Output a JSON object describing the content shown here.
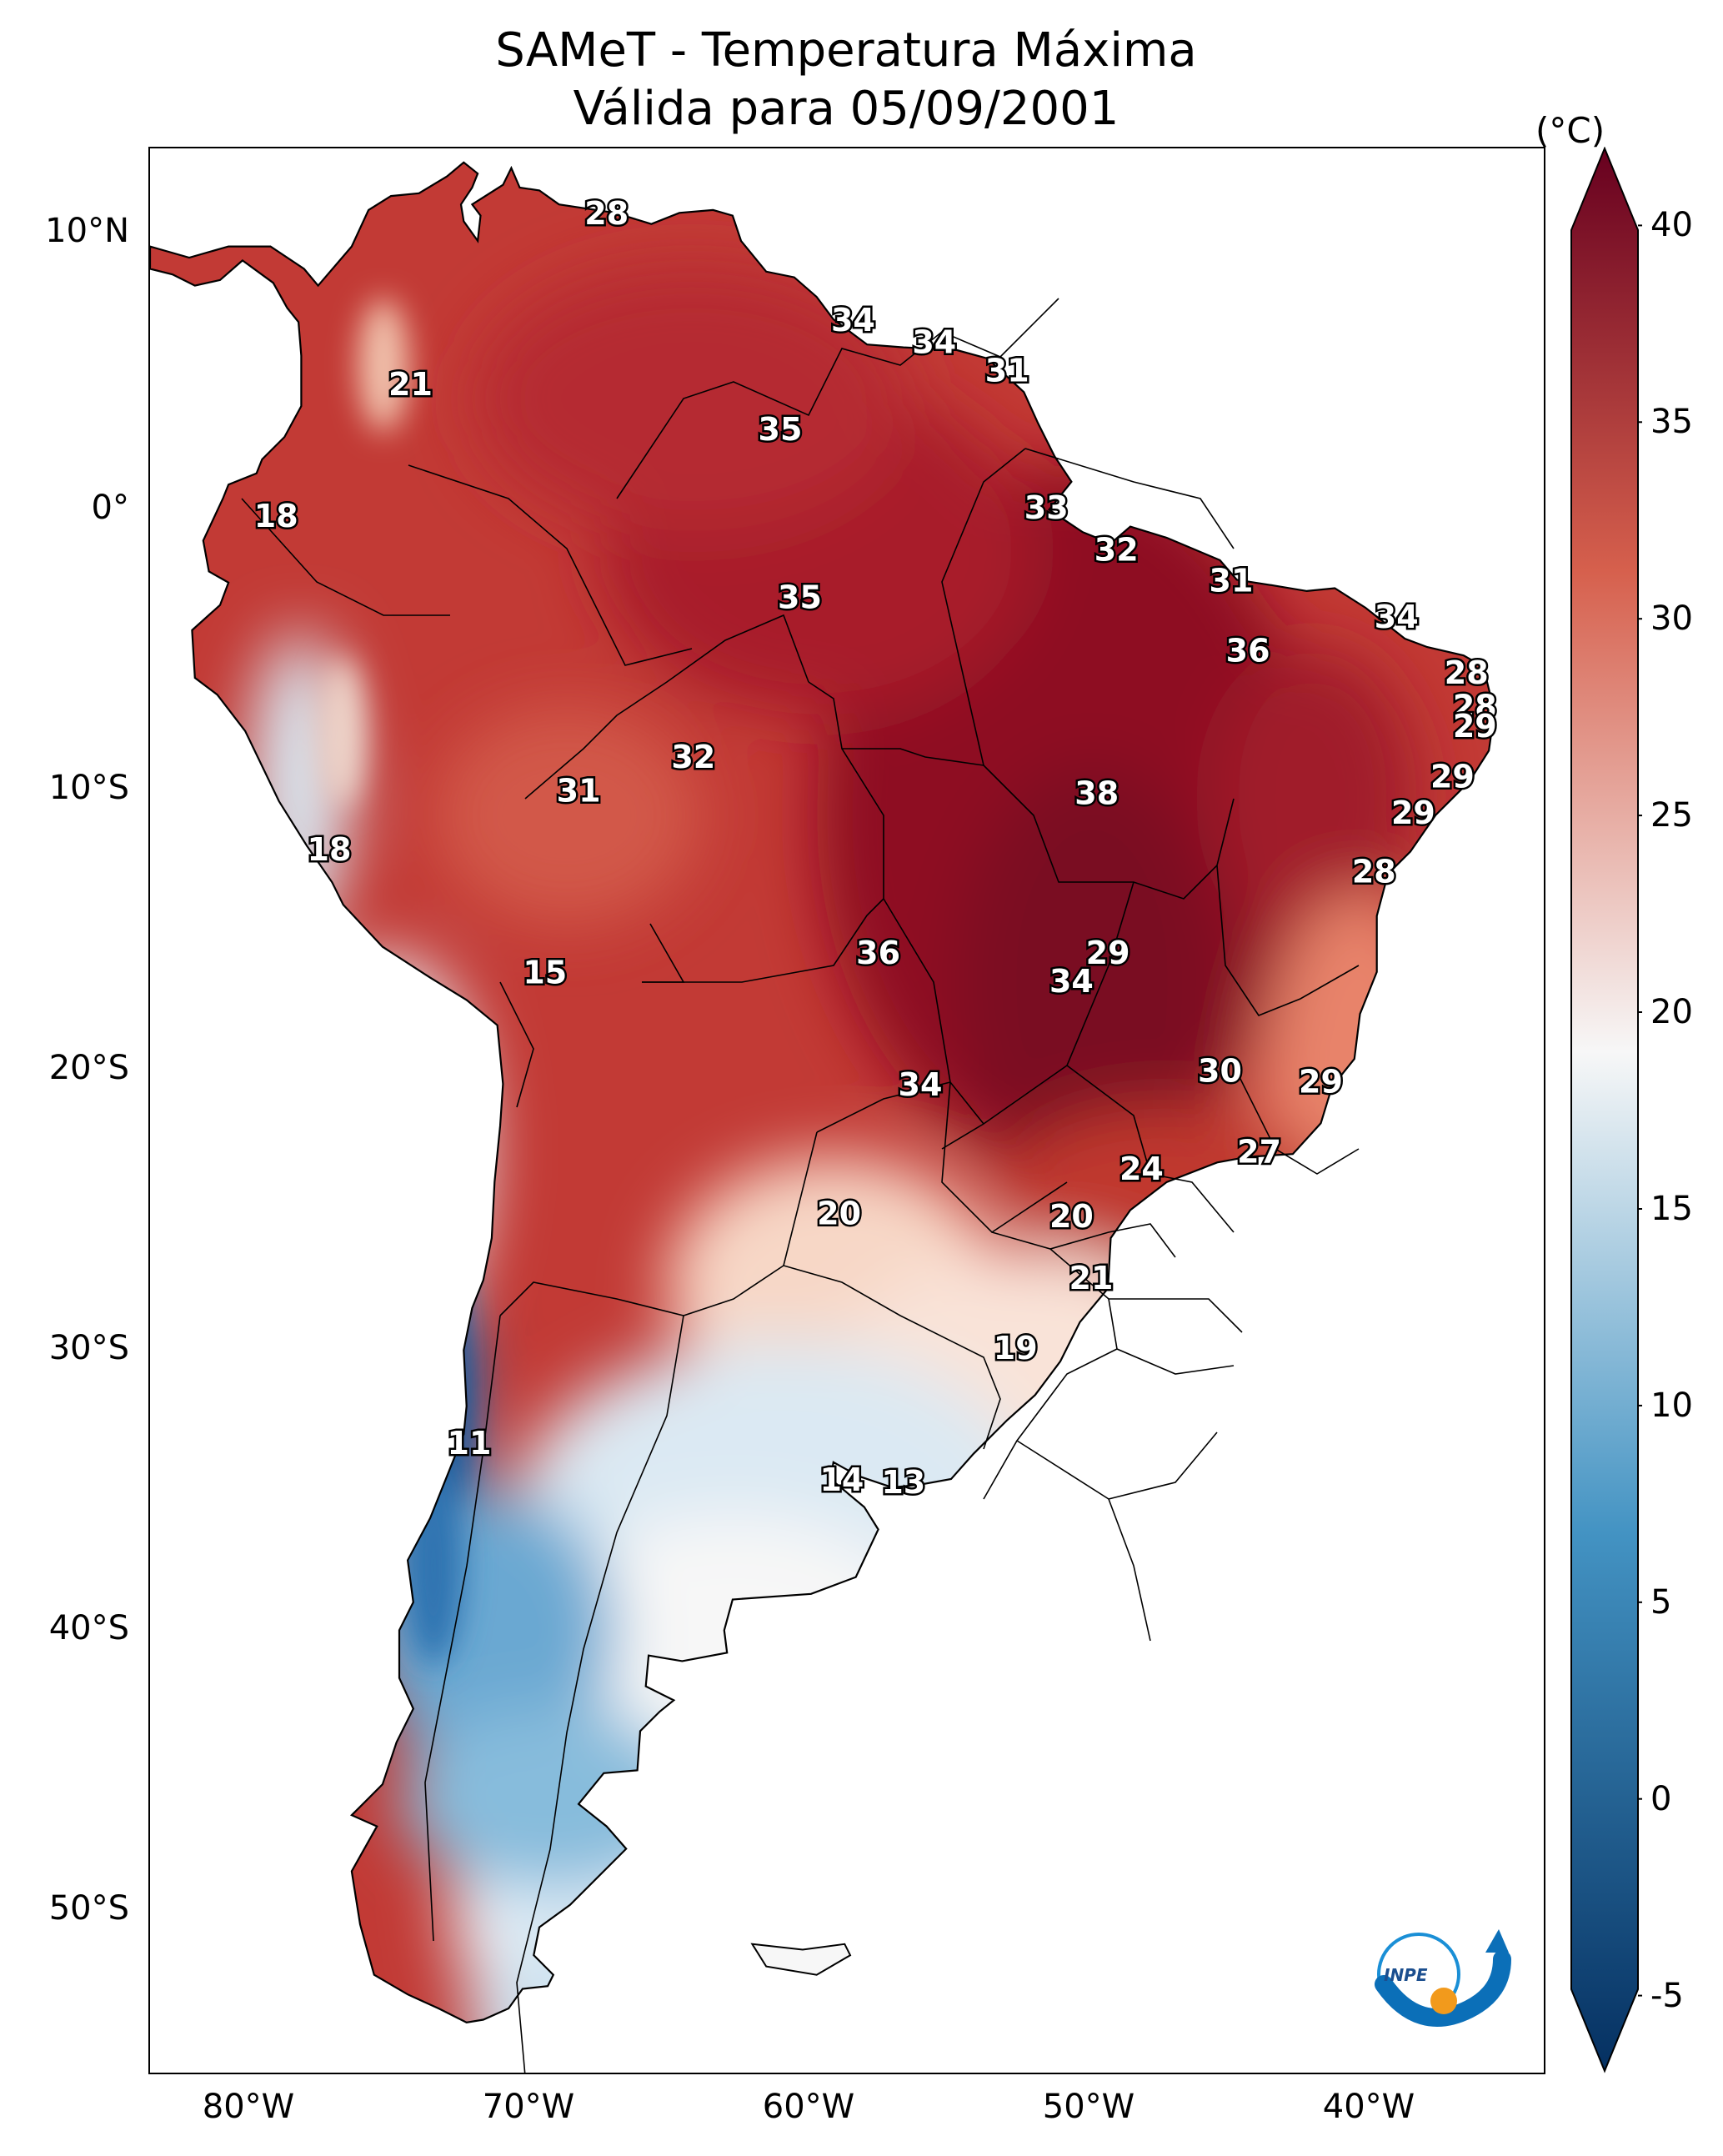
{
  "title": {
    "line1": "SAMeT - Temperatura Máxima",
    "line2": "Válida para 05/09/2001"
  },
  "axes": {
    "lat_ticks": [
      "10°N",
      "0°",
      "10°S",
      "20°S",
      "30°S",
      "40°S",
      "50°S"
    ],
    "lon_ticks": [
      "80°W",
      "70°W",
      "60°W",
      "50°W",
      "40°W"
    ]
  },
  "colorbar": {
    "unit": "(°C)",
    "min": -7,
    "max": 42,
    "ticks": [
      "40",
      "35",
      "30",
      "25",
      "20",
      "15",
      "10",
      "5",
      "0",
      "-5"
    ],
    "colors": {
      "hot": "#67001f",
      "warm": "#d6604d",
      "neutral": "#f7f7f7",
      "cool": "#4393c3",
      "cold": "#053061"
    }
  },
  "map_labels": [
    {
      "text": "28",
      "lon": -66.5,
      "lat": 10.5
    },
    {
      "text": "21",
      "lon": -73.5,
      "lat": 4.4
    },
    {
      "text": "34",
      "lon": -57.7,
      "lat": 6.7
    },
    {
      "text": "34",
      "lon": -54.8,
      "lat": 5.9
    },
    {
      "text": "31",
      "lon": -52.2,
      "lat": 4.9
    },
    {
      "text": "35",
      "lon": -60.3,
      "lat": 2.8
    },
    {
      "text": "33",
      "lon": -50.8,
      "lat": 0.0
    },
    {
      "text": "18",
      "lon": -78.3,
      "lat": -0.3
    },
    {
      "text": "32",
      "lon": -48.3,
      "lat": -1.5
    },
    {
      "text": "31",
      "lon": -44.2,
      "lat": -2.6
    },
    {
      "text": "35",
      "lon": -59.6,
      "lat": -3.2
    },
    {
      "text": "34",
      "lon": -38.3,
      "lat": -3.9
    },
    {
      "text": "36",
      "lon": -43.6,
      "lat": -5.1
    },
    {
      "text": "28",
      "lon": -35.8,
      "lat": -5.9
    },
    {
      "text": "28",
      "lon": -35.5,
      "lat": -7.1
    },
    {
      "text": "29",
      "lon": -35.5,
      "lat": -7.8
    },
    {
      "text": "32",
      "lon": -63.4,
      "lat": -8.9
    },
    {
      "text": "29",
      "lon": -36.3,
      "lat": -9.6
    },
    {
      "text": "31",
      "lon": -67.5,
      "lat": -10.1
    },
    {
      "text": "38",
      "lon": -49.0,
      "lat": -10.2
    },
    {
      "text": "29",
      "lon": -37.7,
      "lat": -10.9
    },
    {
      "text": "18",
      "lon": -76.4,
      "lat": -12.2
    },
    {
      "text": "28",
      "lon": -39.1,
      "lat": -13.0
    },
    {
      "text": "36",
      "lon": -56.8,
      "lat": -15.9
    },
    {
      "text": "29",
      "lon": -48.6,
      "lat": -15.9
    },
    {
      "text": "34",
      "lon": -49.9,
      "lat": -16.9
    },
    {
      "text": "15",
      "lon": -68.7,
      "lat": -16.6
    },
    {
      "text": "30",
      "lon": -44.6,
      "lat": -20.1
    },
    {
      "text": "29",
      "lon": -41.0,
      "lat": -20.5
    },
    {
      "text": "34",
      "lon": -55.3,
      "lat": -20.6
    },
    {
      "text": "27",
      "lon": -43.2,
      "lat": -23.0
    },
    {
      "text": "24",
      "lon": -47.4,
      "lat": -23.6
    },
    {
      "text": "20",
      "lon": -58.2,
      "lat": -25.2
    },
    {
      "text": "20",
      "lon": -49.9,
      "lat": -25.3
    },
    {
      "text": "21",
      "lon": -49.2,
      "lat": -27.5
    },
    {
      "text": "19",
      "lon": -51.9,
      "lat": -30.0
    },
    {
      "text": "11",
      "lon": -71.4,
      "lat": -33.4
    },
    {
      "text": "14",
      "lon": -58.1,
      "lat": -34.7
    },
    {
      "text": "13",
      "lon": -55.9,
      "lat": -34.8
    }
  ],
  "logo": {
    "text": "INPE"
  }
}
